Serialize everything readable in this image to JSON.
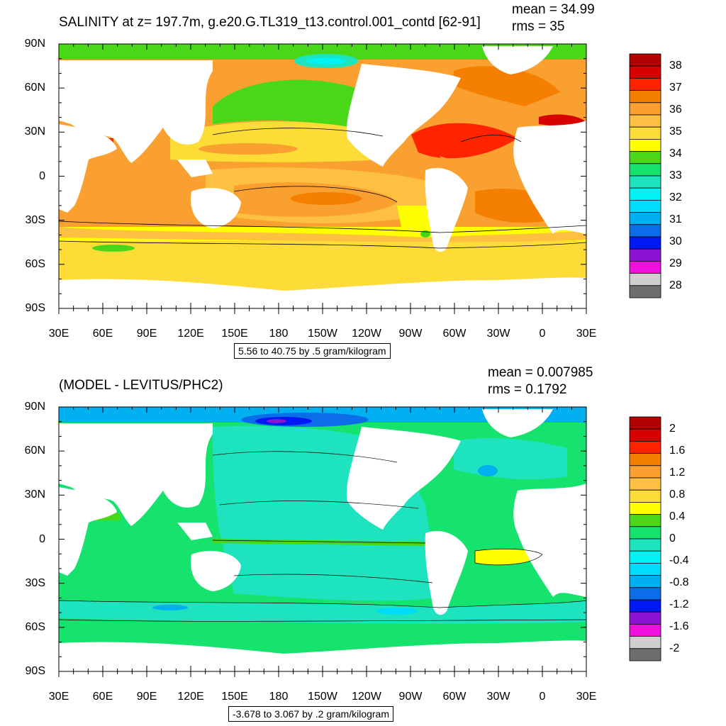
{
  "panels": [
    {
      "title": "SALINITY at z= 197.7m, g.e20.G.TL319_t13.control.001_contd [62-91]",
      "mean": "mean = 34.99",
      "rms": "rms = 35",
      "lat_labels": [
        "90N",
        "60N",
        "30N",
        "0",
        "30S",
        "60S",
        "90S"
      ],
      "lon_labels": [
        "30E",
        "60E",
        "90E",
        "120E",
        "150E",
        "180",
        "150W",
        "120W",
        "90W",
        "60W",
        "30W",
        "0",
        "30E"
      ],
      "contour_info": "5.56 to 40.75 by .5 gram/kilogram",
      "colorbar": {
        "labels": [
          "38",
          "37",
          "36",
          "35",
          "34",
          "33",
          "32",
          "31",
          "30",
          "29",
          "28"
        ],
        "colors": [
          "#b30000",
          "#d90000",
          "#ff2400",
          "#f57f00",
          "#f9a030",
          "#fdc040",
          "#fedc37",
          "#ffff00",
          "#48d818",
          "#15e36e",
          "#1de3be",
          "#00f3f3",
          "#00dcfa",
          "#00b0f0",
          "#0b6ee8",
          "#0018f4",
          "#8b13d1",
          "#ee11dd",
          "#cfcfcf",
          "#6e6e6e"
        ]
      }
    },
    {
      "title": "(MODEL - LEVITUS/PHC2)",
      "mean": "mean = 0.007985",
      "rms": "rms = 0.1792",
      "lat_labels": [
        "90N",
        "60N",
        "30N",
        "0",
        "30S",
        "60S",
        "90S"
      ],
      "lon_labels": [
        "30E",
        "60E",
        "90E",
        "120E",
        "150E",
        "180",
        "150W",
        "120W",
        "90W",
        "60W",
        "30W",
        "0",
        "30E"
      ],
      "contour_info": "-3.678 to 3.067 by .2 gram/kilogram",
      "colorbar": {
        "labels": [
          "2",
          "1.6",
          "1.2",
          "0.8",
          "0.4",
          "0",
          "-0.4",
          "-0.8",
          "-1.2",
          "-1.6",
          "-2"
        ],
        "colors": [
          "#b30000",
          "#d90000",
          "#ff2400",
          "#f57f00",
          "#f9a030",
          "#fdc040",
          "#fedc37",
          "#ffff00",
          "#48d818",
          "#15e36e",
          "#1de3be",
          "#00f3f3",
          "#00dcfa",
          "#00b0f0",
          "#0b6ee8",
          "#0018f4",
          "#8b13d1",
          "#ee11dd",
          "#cfcfcf",
          "#6e6e6e"
        ]
      }
    }
  ],
  "fills": {
    "land": "#ffffff",
    "top_base": "#f9a030",
    "bottom_base": "#15e36e"
  }
}
